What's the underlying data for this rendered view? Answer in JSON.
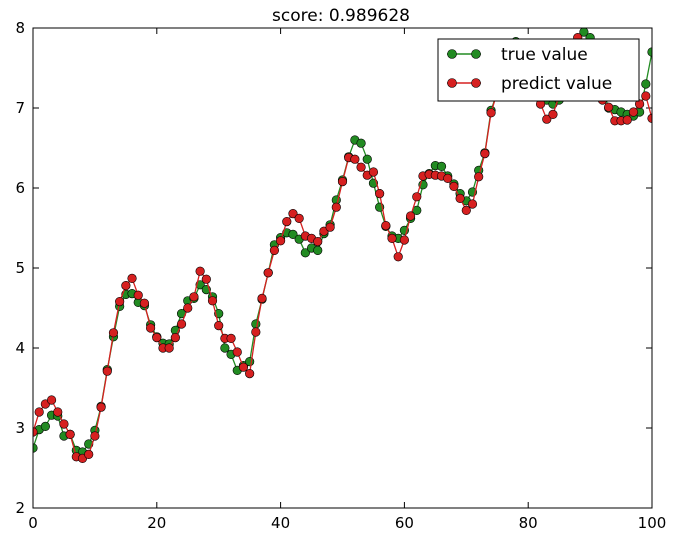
{
  "chart_data": {
    "type": "line",
    "title": "score: 0.989628",
    "xlabel": "",
    "ylabel": "",
    "xlim": [
      0,
      100
    ],
    "ylim": [
      2,
      8
    ],
    "xticks": [
      0,
      20,
      40,
      60,
      80,
      100
    ],
    "yticks": [
      2,
      3,
      4,
      5,
      6,
      7,
      8
    ],
    "legend_position": "top-right",
    "grid": false,
    "x": [
      0,
      1,
      2,
      3,
      4,
      5,
      6,
      7,
      8,
      9,
      10,
      11,
      12,
      13,
      14,
      15,
      16,
      17,
      18,
      19,
      20,
      21,
      22,
      23,
      24,
      25,
      26,
      27,
      28,
      29,
      30,
      31,
      32,
      33,
      34,
      35,
      36,
      37,
      38,
      39,
      40,
      41,
      42,
      43,
      44,
      45,
      46,
      47,
      48,
      49,
      50,
      51,
      52,
      53,
      54,
      55,
      56,
      57,
      58,
      59,
      60,
      61,
      62,
      63,
      64,
      65,
      66,
      67,
      68,
      69,
      70,
      71,
      72,
      73,
      74,
      75,
      76,
      77,
      78,
      79,
      80,
      81,
      82,
      83,
      84,
      85,
      86,
      87,
      88,
      89,
      90,
      91,
      92,
      93,
      94,
      95,
      96,
      97,
      98,
      99,
      100
    ],
    "series": [
      {
        "name": "true value",
        "color": "#228b22",
        "values": [
          2.75,
          2.98,
          3.02,
          3.16,
          3.15,
          2.9,
          2.92,
          2.72,
          2.7,
          2.8,
          2.97,
          3.27,
          3.73,
          4.14,
          4.52,
          4.67,
          4.68,
          4.57,
          4.53,
          4.29,
          4.14,
          4.06,
          4.05,
          4.22,
          4.43,
          4.59,
          4.62,
          4.79,
          4.73,
          4.64,
          4.43,
          4.0,
          3.92,
          3.72,
          3.78,
          3.83,
          4.3,
          4.61,
          4.94,
          5.29,
          5.38,
          5.44,
          5.42,
          5.36,
          5.19,
          5.25,
          5.22,
          5.43,
          5.54,
          5.85,
          6.1,
          6.39,
          6.6,
          6.56,
          6.36,
          6.06,
          5.76,
          5.52,
          5.4,
          5.37,
          5.47,
          5.62,
          5.72,
          6.04,
          6.18,
          6.28,
          6.27,
          6.15,
          6.05,
          5.93,
          5.84,
          5.95,
          6.22,
          6.44,
          6.97,
          7.2,
          7.38,
          7.55,
          7.83,
          7.7,
          7.45,
          7.3,
          7.15,
          7.1,
          7.05,
          7.1,
          7.35,
          7.6,
          7.85,
          7.95,
          7.88,
          7.6,
          7.25,
          7.0,
          6.98,
          6.95,
          6.92,
          6.9,
          6.95,
          7.3,
          7.7
        ]
      },
      {
        "name": "predict value",
        "color": "#d62020",
        "values": [
          2.95,
          3.2,
          3.3,
          3.35,
          3.2,
          3.05,
          2.92,
          2.64,
          2.62,
          2.67,
          2.9,
          3.26,
          3.71,
          4.19,
          4.58,
          4.78,
          4.87,
          4.66,
          4.56,
          4.25,
          4.13,
          4.0,
          4.0,
          4.13,
          4.3,
          4.5,
          4.64,
          4.96,
          4.86,
          4.59,
          4.28,
          4.12,
          4.12,
          3.95,
          3.76,
          3.68,
          4.2,
          4.62,
          4.94,
          5.22,
          5.34,
          5.58,
          5.68,
          5.62,
          5.4,
          5.37,
          5.33,
          5.46,
          5.51,
          5.76,
          6.08,
          6.38,
          6.36,
          6.26,
          6.16,
          6.2,
          5.93,
          5.53,
          5.37,
          5.14,
          5.35,
          5.65,
          5.89,
          6.15,
          6.17,
          6.16,
          6.15,
          6.12,
          6.02,
          5.87,
          5.72,
          5.8,
          6.14,
          6.43,
          6.94,
          7.2,
          7.38,
          7.55,
          7.62,
          7.55,
          7.4,
          7.2,
          7.05,
          6.86,
          6.92,
          7.15,
          7.4,
          7.65,
          7.88,
          7.75,
          7.55,
          7.3,
          7.1,
          7.01,
          6.84,
          6.84,
          6.85,
          6.95,
          7.05,
          7.15,
          6.87
        ]
      }
    ]
  }
}
